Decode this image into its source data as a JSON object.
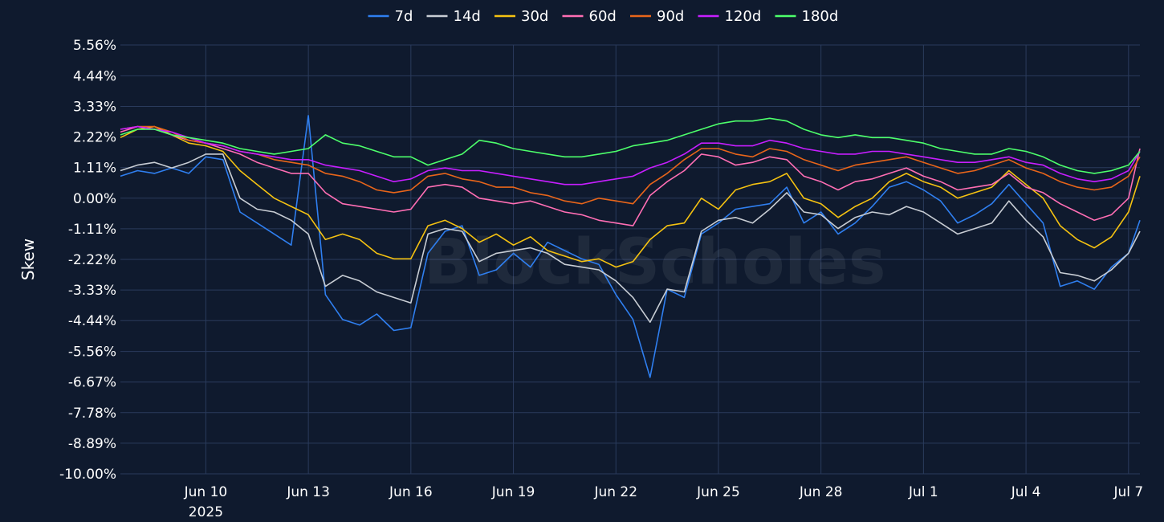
{
  "chart_data": {
    "type": "line",
    "title": "",
    "xlabel": "",
    "ylabel": "Skew",
    "watermark": "BlockScholes",
    "legend_position": "top-center",
    "grid": true,
    "x_range": [
      "2025-06-07T12:00",
      "2025-07-07T08:00"
    ],
    "ylim": [
      -10.0,
      5.56
    ],
    "y_ticks": [
      5.56,
      4.44,
      3.33,
      2.22,
      1.11,
      0.0,
      -1.11,
      -2.22,
      -3.33,
      -4.44,
      -5.56,
      -6.67,
      -7.78,
      -8.89,
      -10.0
    ],
    "y_tick_labels": [
      "5.56%",
      "4.44%",
      "3.33%",
      "2.22%",
      "1.11%",
      "0.00%",
      "-1.11%",
      "-2.22%",
      "-3.33%",
      "-4.44%",
      "-5.56%",
      "-6.67%",
      "-7.78%",
      "-8.89%",
      "-10.00%"
    ],
    "x_ticks": [
      {
        "date": "2025-06-10",
        "label": "Jun 10",
        "sublabel": "2025"
      },
      {
        "date": "2025-06-13",
        "label": "Jun 13"
      },
      {
        "date": "2025-06-16",
        "label": "Jun 16"
      },
      {
        "date": "2025-06-19",
        "label": "Jun 19"
      },
      {
        "date": "2025-06-22",
        "label": "Jun 22"
      },
      {
        "date": "2025-06-25",
        "label": "Jun 25"
      },
      {
        "date": "2025-06-28",
        "label": "Jun 28"
      },
      {
        "date": "2025-07-01",
        "label": "Jul 1"
      },
      {
        "date": "2025-07-04",
        "label": "Jul 4"
      },
      {
        "date": "2025-07-07",
        "label": "Jul 7"
      }
    ],
    "x": [
      "2025-06-07T12:00",
      "2025-06-08T00:00",
      "2025-06-08T12:00",
      "2025-06-09T00:00",
      "2025-06-09T12:00",
      "2025-06-10T00:00",
      "2025-06-10T12:00",
      "2025-06-11T00:00",
      "2025-06-11T12:00",
      "2025-06-12T00:00",
      "2025-06-12T12:00",
      "2025-06-13T00:00",
      "2025-06-13T12:00",
      "2025-06-14T00:00",
      "2025-06-14T12:00",
      "2025-06-15T00:00",
      "2025-06-15T12:00",
      "2025-06-16T00:00",
      "2025-06-16T12:00",
      "2025-06-17T00:00",
      "2025-06-17T12:00",
      "2025-06-18T00:00",
      "2025-06-18T12:00",
      "2025-06-19T00:00",
      "2025-06-19T12:00",
      "2025-06-20T00:00",
      "2025-06-20T12:00",
      "2025-06-21T00:00",
      "2025-06-21T12:00",
      "2025-06-22T00:00",
      "2025-06-22T12:00",
      "2025-06-23T00:00",
      "2025-06-23T12:00",
      "2025-06-24T00:00",
      "2025-06-24T12:00",
      "2025-06-25T00:00",
      "2025-06-25T12:00",
      "2025-06-26T00:00",
      "2025-06-26T12:00",
      "2025-06-27T00:00",
      "2025-06-27T12:00",
      "2025-06-28T00:00",
      "2025-06-28T12:00",
      "2025-06-29T00:00",
      "2025-06-29T12:00",
      "2025-06-30T00:00",
      "2025-06-30T12:00",
      "2025-07-01T00:00",
      "2025-07-01T12:00",
      "2025-07-02T00:00",
      "2025-07-02T12:00",
      "2025-07-03T00:00",
      "2025-07-03T12:00",
      "2025-07-04T00:00",
      "2025-07-04T12:00",
      "2025-07-05T00:00",
      "2025-07-05T12:00",
      "2025-07-06T00:00",
      "2025-07-06T12:00",
      "2025-07-07T00:00",
      "2025-07-07T08:00"
    ],
    "series": [
      {
        "name": "7d",
        "color": "#2f7ff0",
        "values": [
          0.8,
          1.0,
          0.9,
          1.1,
          0.9,
          1.5,
          1.4,
          -0.5,
          -0.9,
          -1.3,
          -1.7,
          3.0,
          -3.5,
          -4.4,
          -4.6,
          -4.2,
          -4.8,
          -4.7,
          -2.0,
          -1.2,
          -1.0,
          -2.8,
          -2.6,
          -2.0,
          -2.5,
          -1.6,
          -1.9,
          -2.2,
          -2.4,
          -3.5,
          -4.4,
          -6.5,
          -3.3,
          -3.6,
          -1.3,
          -0.9,
          -0.4,
          -0.3,
          -0.2,
          0.4,
          -0.9,
          -0.5,
          -1.3,
          -0.9,
          -0.3,
          0.4,
          0.6,
          0.3,
          -0.1,
          -0.9,
          -0.6,
          -0.2,
          0.5,
          -0.2,
          -0.9,
          -3.2,
          -3.0,
          -3.3,
          -2.5,
          -2.0,
          -0.8
        ]
      },
      {
        "name": "14d",
        "color": "#c8cdd4",
        "values": [
          1.0,
          1.2,
          1.3,
          1.1,
          1.3,
          1.6,
          1.6,
          0.0,
          -0.4,
          -0.5,
          -0.8,
          -1.3,
          -3.2,
          -2.8,
          -3.0,
          -3.4,
          -3.6,
          -3.8,
          -1.3,
          -1.1,
          -1.2,
          -2.3,
          -2.0,
          -1.9,
          -1.8,
          -2.0,
          -2.4,
          -2.5,
          -2.6,
          -3.0,
          -3.6,
          -4.5,
          -3.3,
          -3.4,
          -1.2,
          -0.8,
          -0.7,
          -0.9,
          -0.4,
          0.2,
          -0.5,
          -0.6,
          -1.1,
          -0.7,
          -0.5,
          -0.6,
          -0.3,
          -0.5,
          -0.9,
          -1.3,
          -1.1,
          -0.9,
          -0.1,
          -0.8,
          -1.4,
          -2.7,
          -2.8,
          -3.0,
          -2.6,
          -2.0,
          -1.2
        ]
      },
      {
        "name": "30d",
        "color": "#f5c211",
        "values": [
          2.2,
          2.5,
          2.6,
          2.3,
          2.0,
          1.9,
          1.7,
          1.0,
          0.5,
          0.0,
          -0.3,
          -0.6,
          -1.5,
          -1.3,
          -1.5,
          -2.0,
          -2.2,
          -2.2,
          -1.0,
          -0.8,
          -1.1,
          -1.6,
          -1.3,
          -1.7,
          -1.4,
          -1.9,
          -2.1,
          -2.3,
          -2.2,
          -2.5,
          -2.3,
          -1.5,
          -1.0,
          -0.9,
          0.0,
          -0.4,
          0.3,
          0.5,
          0.6,
          0.9,
          0.0,
          -0.2,
          -0.7,
          -0.3,
          0.0,
          0.6,
          0.9,
          0.6,
          0.4,
          0.0,
          0.2,
          0.4,
          1.0,
          0.5,
          0.0,
          -1.0,
          -1.5,
          -1.8,
          -1.4,
          -0.5,
          0.8
        ]
      },
      {
        "name": "60d",
        "color": "#ff6eb4",
        "values": [
          2.4,
          2.6,
          2.5,
          2.3,
          2.1,
          2.0,
          1.8,
          1.6,
          1.3,
          1.1,
          0.9,
          0.9,
          0.2,
          -0.2,
          -0.3,
          -0.4,
          -0.5,
          -0.4,
          0.4,
          0.5,
          0.4,
          0.0,
          -0.1,
          -0.2,
          -0.1,
          -0.3,
          -0.5,
          -0.6,
          -0.8,
          -0.9,
          -1.0,
          0.1,
          0.6,
          1.0,
          1.6,
          1.5,
          1.2,
          1.3,
          1.5,
          1.4,
          0.8,
          0.6,
          0.3,
          0.6,
          0.7,
          0.9,
          1.1,
          0.8,
          0.6,
          0.3,
          0.4,
          0.5,
          0.9,
          0.4,
          0.2,
          -0.2,
          -0.5,
          -0.8,
          -0.6,
          0.0,
          1.8
        ]
      },
      {
        "name": "90d",
        "color": "#e8651a",
        "values": [
          2.5,
          2.6,
          2.6,
          2.4,
          2.1,
          2.0,
          1.9,
          1.7,
          1.6,
          1.4,
          1.3,
          1.2,
          0.9,
          0.8,
          0.6,
          0.3,
          0.2,
          0.3,
          0.8,
          0.9,
          0.7,
          0.6,
          0.4,
          0.4,
          0.2,
          0.1,
          -0.1,
          -0.2,
          0.0,
          -0.1,
          -0.2,
          0.5,
          0.9,
          1.4,
          1.8,
          1.8,
          1.6,
          1.5,
          1.8,
          1.7,
          1.4,
          1.2,
          1.0,
          1.2,
          1.3,
          1.4,
          1.5,
          1.3,
          1.1,
          0.9,
          1.0,
          1.2,
          1.4,
          1.1,
          0.9,
          0.6,
          0.4,
          0.3,
          0.4,
          0.8,
          1.5
        ]
      },
      {
        "name": "120d",
        "color": "#c71eff",
        "values": [
          2.5,
          2.6,
          2.5,
          2.4,
          2.2,
          2.0,
          1.9,
          1.7,
          1.6,
          1.5,
          1.4,
          1.4,
          1.2,
          1.1,
          1.0,
          0.8,
          0.6,
          0.7,
          1.0,
          1.1,
          1.0,
          1.0,
          0.9,
          0.8,
          0.7,
          0.6,
          0.5,
          0.5,
          0.6,
          0.7,
          0.8,
          1.1,
          1.3,
          1.6,
          2.0,
          2.0,
          1.9,
          1.9,
          2.1,
          2.0,
          1.8,
          1.7,
          1.6,
          1.6,
          1.7,
          1.7,
          1.6,
          1.5,
          1.4,
          1.3,
          1.3,
          1.4,
          1.5,
          1.3,
          1.2,
          0.9,
          0.7,
          0.6,
          0.7,
          1.0,
          1.7
        ]
      },
      {
        "name": "180d",
        "color": "#4dff6b",
        "values": [
          2.3,
          2.5,
          2.5,
          2.3,
          2.2,
          2.1,
          2.0,
          1.8,
          1.7,
          1.6,
          1.7,
          1.8,
          2.3,
          2.0,
          1.9,
          1.7,
          1.5,
          1.5,
          1.2,
          1.4,
          1.6,
          2.1,
          2.0,
          1.8,
          1.7,
          1.6,
          1.5,
          1.5,
          1.6,
          1.7,
          1.9,
          2.0,
          2.1,
          2.3,
          2.5,
          2.7,
          2.8,
          2.8,
          2.9,
          2.8,
          2.5,
          2.3,
          2.2,
          2.3,
          2.2,
          2.2,
          2.1,
          2.0,
          1.8,
          1.7,
          1.6,
          1.6,
          1.8,
          1.7,
          1.5,
          1.2,
          1.0,
          0.9,
          1.0,
          1.2,
          1.7
        ]
      }
    ]
  }
}
